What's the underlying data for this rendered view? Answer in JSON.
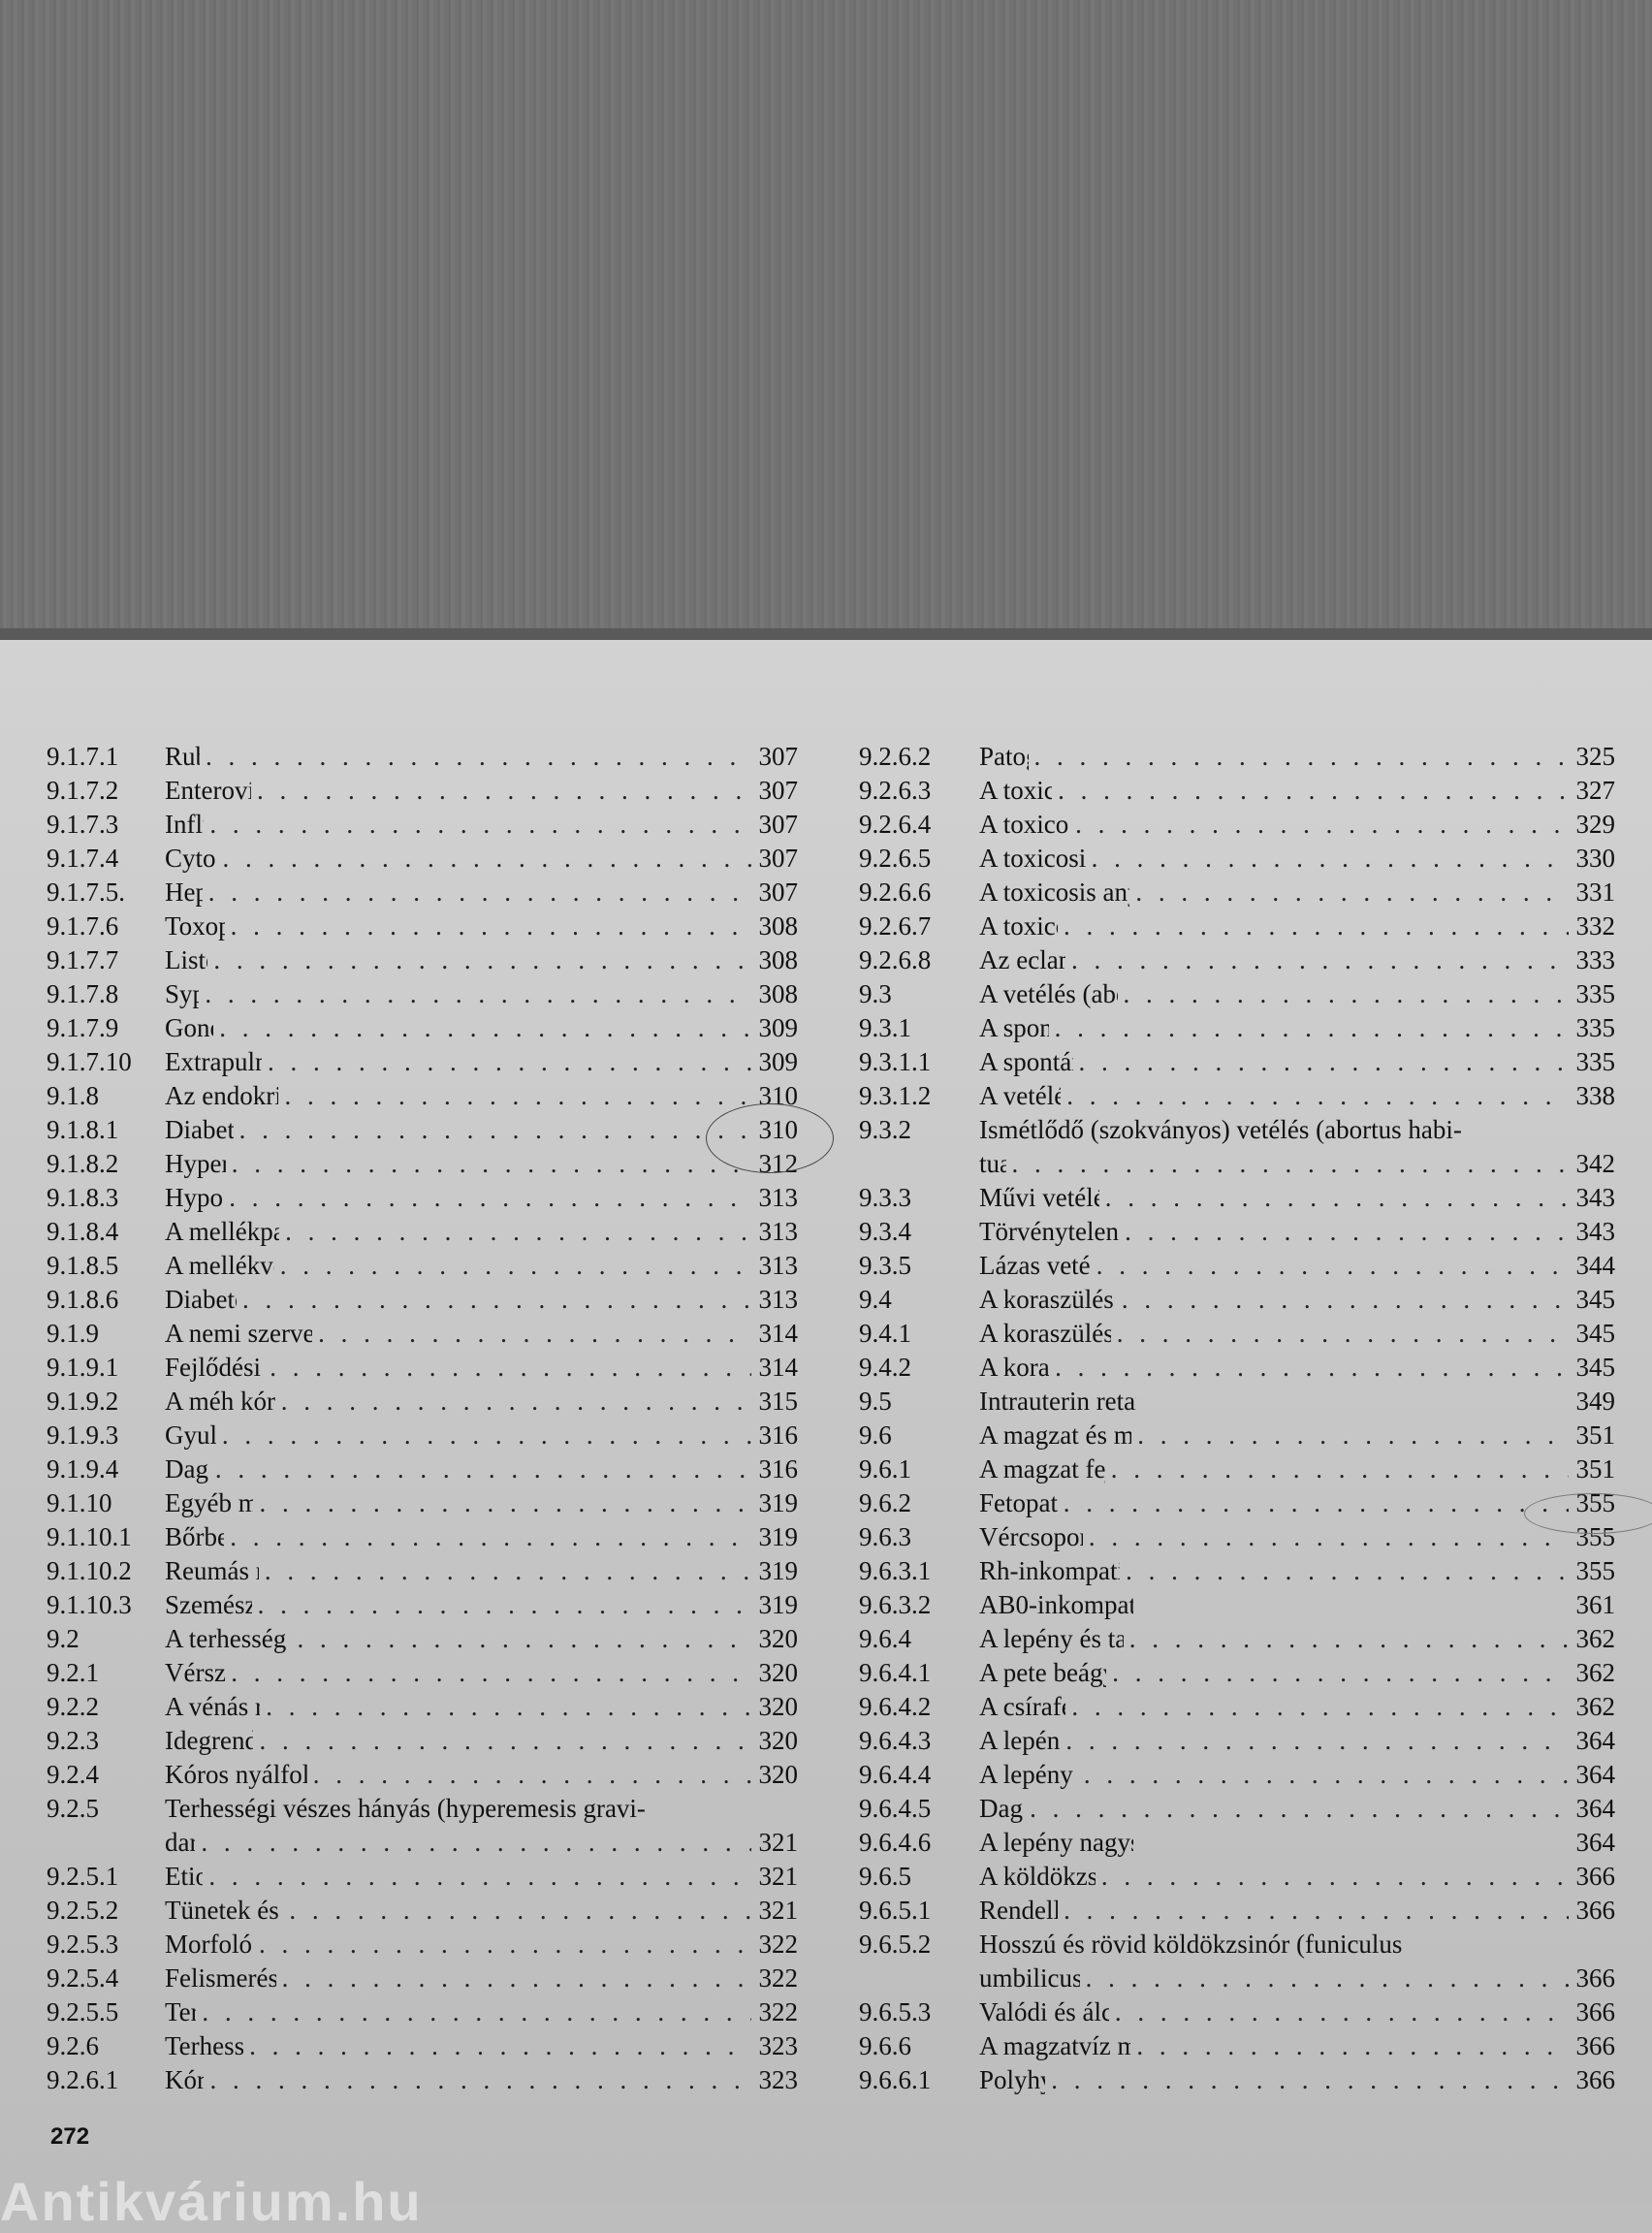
{
  "page_number": "272",
  "watermark": "Antikvárium.hu",
  "left_column": [
    {
      "num": "9.1.7.1",
      "title": "Rubeola",
      "page": "307"
    },
    {
      "num": "9.1.7.2",
      "title": "Enterovírus-fertőzések",
      "page": "307"
    },
    {
      "num": "9.1.7.3",
      "title": "Influenza",
      "page": "307"
    },
    {
      "num": "9.1.7.4",
      "title": "Cytomegalia",
      "page": "307"
    },
    {
      "num": "9.1.7.5.",
      "title": "Hepatitis",
      "page": "307"
    },
    {
      "num": "9.1.7.6",
      "title": "Toxoplasmosis",
      "page": "308"
    },
    {
      "num": "9.1.7.7",
      "title": "Listeriosis",
      "page": "308"
    },
    {
      "num": "9.1.7.8",
      "title": "Syphilis",
      "page": "308"
    },
    {
      "num": "9.1.7.9",
      "title": "Gonorrhoea",
      "page": "309"
    },
    {
      "num": "9.1.7.10",
      "title": "Extrapulmonális gümőkór",
      "page": "309"
    },
    {
      "num": "9.1.8",
      "title": "Az endokrin szervek betegségei",
      "page": "310"
    },
    {
      "num": "9.1.8.1",
      "title": "Diabetes mellitus",
      "page": "310"
    },
    {
      "num": "9.1.8.2",
      "title": "Hyperthyreosis",
      "page": "312"
    },
    {
      "num": "9.1.8.3",
      "title": "Hypothyreosis",
      "page": "313"
    },
    {
      "num": "9.1.8.4",
      "title": "A mellékpajzsmirigy betegségei",
      "page": "313"
    },
    {
      "num": "9.1.8.5",
      "title": "A mellékvesekéreg betegségei",
      "page": "313"
    },
    {
      "num": "9.1.8.6",
      "title": "Diabetes insipidus",
      "page": "313"
    },
    {
      "num": "9.1.9",
      "title": "A nemi szervek rendellenességei, betegségei",
      "page": "314"
    },
    {
      "num": "9.1.9.1",
      "title": "Fejlődési rendellenességek",
      "page": "314"
    },
    {
      "num": "9.1.9.2",
      "title": "A méh kóros helyzetváltozásai",
      "page": "315"
    },
    {
      "num": "9.1.9.3",
      "title": "Gyulladások",
      "page": "316"
    },
    {
      "num": "9.1.9.4",
      "title": "Daganatok",
      "page": "316"
    },
    {
      "num": "9.1.10",
      "title": "Egyéb megbetegedések",
      "page": "319"
    },
    {
      "num": "9.1.10.1",
      "title": "Bőrbetegségek",
      "page": "319"
    },
    {
      "num": "9.1.10.2",
      "title": "Reumás megbetegedések",
      "page": "319"
    },
    {
      "num": "9.1.10.3",
      "title": "Szemészeti betegségek",
      "page": "319"
    },
    {
      "num": "9.2",
      "title": "A terhesség által okozott betegségek",
      "page": "320"
    },
    {
      "num": "9.2.1",
      "title": "Vérszegénység",
      "page": "320"
    },
    {
      "num": "9.2.2",
      "title": "A vénás rendszer tágulata",
      "page": "320"
    },
    {
      "num": "9.2.3",
      "title": "Idegrendszeri kórképek",
      "page": "320"
    },
    {
      "num": "9.2.4",
      "title": "Kóros nyálfolyás (ptyalismus gravidarum)",
      "page": "320"
    },
    {
      "num": "9.2.5",
      "title": "Terhességi vészes hányás (hyperemesis gravi-",
      "title2": "darum)",
      "page": "321"
    },
    {
      "num": "9.2.5.1",
      "title": "Etiológia",
      "page": "321"
    },
    {
      "num": "9.2.5.2",
      "title": "Tünetek és kórélettani változások",
      "page": "321"
    },
    {
      "num": "9.2.5.3",
      "title": "Morfológiai változások",
      "page": "322"
    },
    {
      "num": "9.2.5.4",
      "title": "Felismerés, elkülönítő kórisme",
      "page": "322"
    },
    {
      "num": "9.2.5.5",
      "title": "Terápia",
      "page": "322"
    },
    {
      "num": "9.2.6",
      "title": "Terhességi toxaemia",
      "page": "323"
    },
    {
      "num": "9.2.6.1",
      "title": "Kóroktan",
      "page": "323"
    }
  ],
  "right_column": [
    {
      "num": "9.2.6.2",
      "title": "Patogenezis",
      "page": "325"
    },
    {
      "num": "9.2.6.3",
      "title": "A toxicosis tünetei",
      "page": "327"
    },
    {
      "num": "9.2.6.4",
      "title": "A toxicosisok beosztása",
      "page": "329"
    },
    {
      "num": "9.2.6.5",
      "title": "A toxicosis klinikai lefolyása",
      "page": "330"
    },
    {
      "num": "9.2.6.6",
      "title": "A toxicosis anyai és magzati következményei",
      "page": "331"
    },
    {
      "num": "9.2.6.7",
      "title": "A toxicosis kezelése",
      "page": "332"
    },
    {
      "num": "9.2.6.8",
      "title": "Az eclampsia kezelése",
      "page": "333"
    },
    {
      "num": "9.3",
      "title": "A vetélés (abortus) és a vetélések típusai",
      "page": "335"
    },
    {
      "num": "9.3.1",
      "title": "A spontán vetélés",
      "page": "335"
    },
    {
      "num": "9.3.1.1",
      "title": "A spontán vetélések okai",
      "page": "335"
    },
    {
      "num": "9.3.1.2",
      "title": "A vetélések lefolyása",
      "page": "338"
    },
    {
      "num": "9.3.2",
      "title": "Ismétlődő (szokványos) vetélés (abortus habi-",
      "title2": "tualis)",
      "page": "342"
    },
    {
      "num": "9.3.3",
      "title": "Művi vetélés (abortus arteficialis)",
      "page": "343"
    },
    {
      "num": "9.3.4",
      "title": "Törvénytelen vetélés (abortus criminalis)",
      "page": "343"
    },
    {
      "num": "9.3.5",
      "title": "Lázas vetélés (abortus febrilis)",
      "page": "344"
    },
    {
      "num": "9.4",
      "title": "A koraszülés jelentősége és kiváltó okai",
      "page": "345"
    },
    {
      "num": "9.4.1",
      "title": "A koraszülés gyakorisága, jelentősége",
      "page": "345"
    },
    {
      "num": "9.4.2",
      "title": "A koraszülés okai",
      "page": "345"
    },
    {
      "num": "9.5",
      "title": "Intrauterin retardáció (small for gestational age)",
      "page": "349",
      "nodots": true
    },
    {
      "num": "9.6",
      "title": "A magzat és mellékrészeinek rendellenességei",
      "page": "351"
    },
    {
      "num": "9.6.1",
      "title": "A magzat fejlődési rendellenességei",
      "page": "351"
    },
    {
      "num": "9.6.2",
      "title": "Fetopathia diabetica",
      "page": "355"
    },
    {
      "num": "9.6.3",
      "title": "Vércsoport-inkompatibilitás",
      "page": "355"
    },
    {
      "num": "9.6.3.1",
      "title": "Rh-inkompatibilitás, Rh-szenzibilizáltság",
      "page": "355"
    },
    {
      "num": "9.6.3.2",
      "title": "AB0-inkompatibilitás és AB0-szenzibilizáltság",
      "page": "361",
      "nodots": true
    },
    {
      "num": "9.6.4",
      "title": "A lepény és tartozékainak rendellenességei",
      "page": "362"
    },
    {
      "num": "9.6.4.1",
      "title": "A pete beágyazódási és érési zavarai",
      "page": "362"
    },
    {
      "num": "9.6.4.2",
      "title": "A csírafejlődés zavarai",
      "page": "362"
    },
    {
      "num": "9.6.4.3",
      "title": "A lepény gyulladásai",
      "page": "364"
    },
    {
      "num": "9.6.4.4",
      "title": "A lepény keringési zavarai",
      "page": "364"
    },
    {
      "num": "9.6.4.5",
      "title": "Daganatok",
      "page": "364"
    },
    {
      "num": "9.6.4.6",
      "title": "A lepény nagyságbeli és alaki rendellenességei",
      "page": "364",
      "nodots": true
    },
    {
      "num": "9.6.5",
      "title": "A köldökzsinór rendellenességei",
      "page": "366"
    },
    {
      "num": "9.6.5.1",
      "title": "Rendellenes tapadás",
      "page": "366"
    },
    {
      "num": "9.6.5.2",
      "title": "Hosszú és rövid köldökzsinór (funiculus",
      "title2": "umbilicus longus et brevis)",
      "page": "366"
    },
    {
      "num": "9.6.5.3",
      "title": "Valódi és álcsomók a köldökzsinóron",
      "page": "366"
    },
    {
      "num": "9.6.6",
      "title": "A magzatvíz mennyiségének rendellenességei",
      "page": "366"
    },
    {
      "num": "9.6.6.1",
      "title": "Polyhydramnion",
      "page": "366"
    }
  ]
}
